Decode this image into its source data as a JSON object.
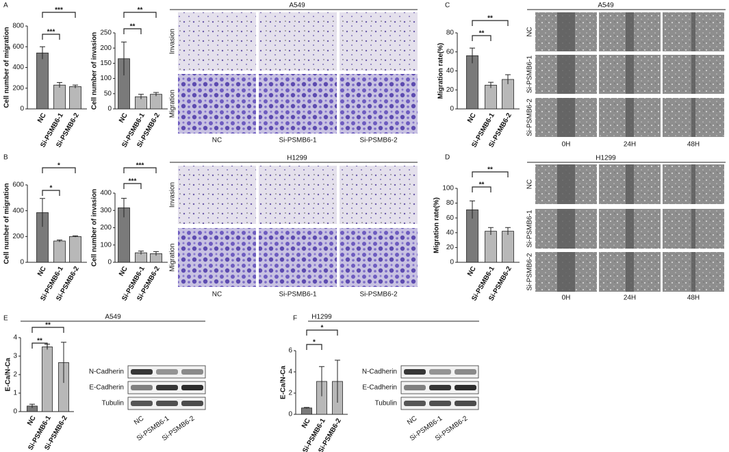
{
  "chart_data": [
    {
      "type": "bar",
      "y_label": "Cell number of migration",
      "categories": [
        "NC",
        "Si-PSMB6-1",
        "Si-PSMB6-2"
      ],
      "values": [
        540,
        230,
        215
      ],
      "errors": [
        60,
        25,
        15
      ],
      "colors": [
        "#7a7a7a",
        "#b8b8b8",
        "#b8b8b8"
      ],
      "ylim": [
        0,
        800
      ],
      "yticks": [
        0,
        200,
        400,
        600,
        800
      ],
      "annotations": [
        "***",
        "***"
      ]
    },
    {
      "type": "bar",
      "y_label": "Cell number of invasion",
      "categories": [
        "NC",
        "Si-PSMB6-1",
        "Si-PSMB6-2"
      ],
      "values": [
        165,
        40,
        48
      ],
      "errors": [
        55,
        8,
        6
      ],
      "colors": [
        "#7a7a7a",
        "#b8b8b8",
        "#b8b8b8"
      ],
      "ylim": [
        0,
        250
      ],
      "yticks": [
        0,
        50,
        100,
        150,
        200,
        250
      ],
      "annotations": [
        "**",
        "**"
      ]
    },
    {
      "type": "bar",
      "y_label": "Cell number of migration",
      "categories": [
        "NC",
        "Si-PSMB6-1",
        "Si-PSMB6-2"
      ],
      "values": [
        385,
        165,
        200
      ],
      "errors": [
        110,
        8,
        5
      ],
      "colors": [
        "#7a7a7a",
        "#b8b8b8",
        "#b8b8b8"
      ],
      "ylim": [
        0,
        600
      ],
      "yticks": [
        0,
        200,
        400,
        600
      ],
      "annotations": [
        "*",
        "*"
      ]
    },
    {
      "type": "bar",
      "y_label": "Cell number of invasion",
      "categories": [
        "NC",
        "Si-PSMB6-1",
        "Si-PSMB6-2"
      ],
      "values": [
        315,
        55,
        50
      ],
      "errors": [
        55,
        10,
        12
      ],
      "colors": [
        "#7a7a7a",
        "#b8b8b8",
        "#b8b8b8"
      ],
      "ylim": [
        0,
        400
      ],
      "yticks": [
        0,
        100,
        200,
        300,
        400
      ],
      "annotations": [
        "***",
        "***"
      ]
    },
    {
      "type": "bar",
      "y_label": "Migration rate(%)",
      "categories": [
        "NC",
        "Si-PSMB6-1",
        "Si-PSMB6-2"
      ],
      "values": [
        56,
        25,
        31
      ],
      "errors": [
        8,
        3,
        5
      ],
      "colors": [
        "#7a7a7a",
        "#b8b8b8",
        "#b8b8b8"
      ],
      "ylim": [
        0,
        80
      ],
      "yticks": [
        0,
        20,
        40,
        60,
        80
      ],
      "annotations": [
        "**",
        "**"
      ]
    },
    {
      "type": "bar",
      "y_label": "Migration rate(%)",
      "categories": [
        "NC",
        "Si-PSMB6-1",
        "Si-PSMB6-2"
      ],
      "values": [
        71,
        42,
        42
      ],
      "errors": [
        12,
        5,
        5
      ],
      "colors": [
        "#7a7a7a",
        "#b8b8b8",
        "#b8b8b8"
      ],
      "ylim": [
        0,
        100
      ],
      "yticks": [
        0,
        20,
        40,
        60,
        80,
        100
      ],
      "annotations": [
        "**",
        "**"
      ]
    },
    {
      "type": "bar",
      "y_label": "E-Ca/N-Ca",
      "categories": [
        "NC",
        "Si-PSMB6-1",
        "Si-PSMB6-2"
      ],
      "values": [
        0.3,
        3.5,
        2.65
      ],
      "errors": [
        0.1,
        0.15,
        1.1
      ],
      "colors": [
        "#7a7a7a",
        "#b8b8b8",
        "#b8b8b8"
      ],
      "ylim": [
        0,
        4
      ],
      "yticks": [
        0,
        1,
        2,
        3,
        4
      ],
      "annotations": [
        "**",
        "**"
      ]
    },
    {
      "type": "bar",
      "y_label": "E-Ca/N-Ca",
      "categories": [
        "NC",
        "Si-PSMB6-1",
        "Si-PSMB6-2"
      ],
      "values": [
        0.6,
        3.1,
        3.1
      ],
      "errors": [
        0.05,
        1.4,
        2.0
      ],
      "colors": [
        "#7a7a7a",
        "#b8b8b8",
        "#b8b8b8"
      ],
      "ylim": [
        0,
        6
      ],
      "yticks": [
        0,
        2,
        4,
        6
      ],
      "annotations": [
        "*",
        "*"
      ]
    }
  ],
  "figure": {
    "panels": [
      "A",
      "B",
      "C",
      "D",
      "E",
      "F"
    ],
    "transwell": [
      {
        "title": "A549",
        "rows": [
          "Invasion",
          "Migration"
        ],
        "columns": [
          "NC",
          "Si-PSMB6-1",
          "Si-PSMB6-2"
        ]
      },
      {
        "title": "H1299",
        "rows": [
          "Invasion",
          "Migration"
        ],
        "columns": [
          "NC",
          "Si-PSMB6-1",
          "Si-PSMB6-2"
        ]
      }
    ],
    "wound": [
      {
        "title": "A549",
        "rows": [
          "NC",
          "Si-PSMB6-1",
          "Si-PSMB6-2"
        ],
        "columns": [
          "0H",
          "24H",
          "48H"
        ]
      },
      {
        "title": "H1299",
        "rows": [
          "NC",
          "Si-PSMB6-1",
          "Si-PSMB6-2"
        ],
        "columns": [
          "0H",
          "24H",
          "48H"
        ]
      }
    ],
    "blot": [
      {
        "title": "A549",
        "rows": [
          "N-Cadherin",
          "E-Cadherin",
          "Tubulin"
        ],
        "columns": [
          "NC",
          "Si-PSMB6-1",
          "Si-PSMB6-2"
        ]
      },
      {
        "title": "H1299",
        "rows": [
          "N-Cadherin",
          "E-Cadherin",
          "Tubulin"
        ],
        "columns": [
          "NC",
          "Si-PSMB6-1",
          "Si-PSMB6-2"
        ]
      }
    ]
  }
}
